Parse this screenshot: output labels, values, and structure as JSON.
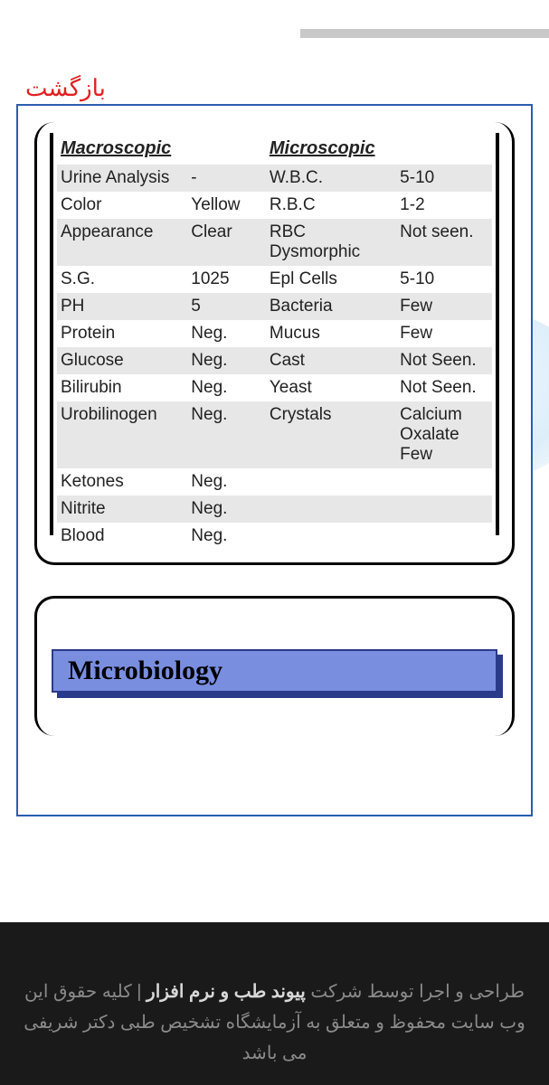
{
  "back_label": "بازگشت",
  "headers": {
    "macro": "Macroscopic",
    "micro": "Microscopic"
  },
  "rows": [
    {
      "shade": true,
      "a": "Urine Analysis",
      "b": "-",
      "c": "W.B.C.",
      "d": "5-10"
    },
    {
      "shade": false,
      "a": "Color",
      "b": "Yellow",
      "c": "R.B.C",
      "d": "1-2"
    },
    {
      "shade": true,
      "a": "Appearance",
      "b": "Clear",
      "c": "RBC Dysmorphic",
      "d": "Not seen."
    },
    {
      "shade": false,
      "a": "S.G.",
      "b": "1025",
      "c": "Epl Cells",
      "d": "5-10"
    },
    {
      "shade": true,
      "a": "PH",
      "b": "5",
      "c": "Bacteria",
      "d": "Few"
    },
    {
      "shade": false,
      "a": "Protein",
      "b": "Neg.",
      "c": "Mucus",
      "d": "Few"
    },
    {
      "shade": true,
      "a": "Glucose",
      "b": "Neg.",
      "c": "Cast",
      "d": "Not Seen."
    },
    {
      "shade": false,
      "a": "Bilirubin",
      "b": "Neg.",
      "c": "Yeast",
      "d": "Not Seen."
    },
    {
      "shade": true,
      "a": "Urobilinogen",
      "b": "Neg.",
      "c": "Crystals",
      "d": "Calcium Oxalate Few"
    },
    {
      "shade": false,
      "a": "Ketones",
      "b": "Neg.",
      "c": "",
      "d": ""
    },
    {
      "shade": true,
      "a": "Nitrite",
      "b": "Neg.",
      "c": "",
      "d": ""
    },
    {
      "shade": false,
      "a": "Blood",
      "b": "Neg.",
      "c": "",
      "d": ""
    }
  ],
  "section_banner": "Microbiology",
  "footer": {
    "line1_pre": "طراحی و اجرا توسط شرکت ",
    "line1_strong": "پیوند طب و نرم افزار",
    "line1_post": " | کلیه حقوق این وب سایت محفوظ و متعلق به آزمایشگاه تشخیص طبی دکتر شریفی می باشد"
  },
  "colors": {
    "border_blue": "#2a5db0",
    "banner_fill": "#7a8ee0",
    "banner_edge": "#2a3a8a",
    "row_shade": "#e7e7e7",
    "back_red": "#e02020",
    "footer_bg": "#1a1a1a",
    "footer_text": "#8a8a8a",
    "footer_strong": "#d8d8d8"
  }
}
